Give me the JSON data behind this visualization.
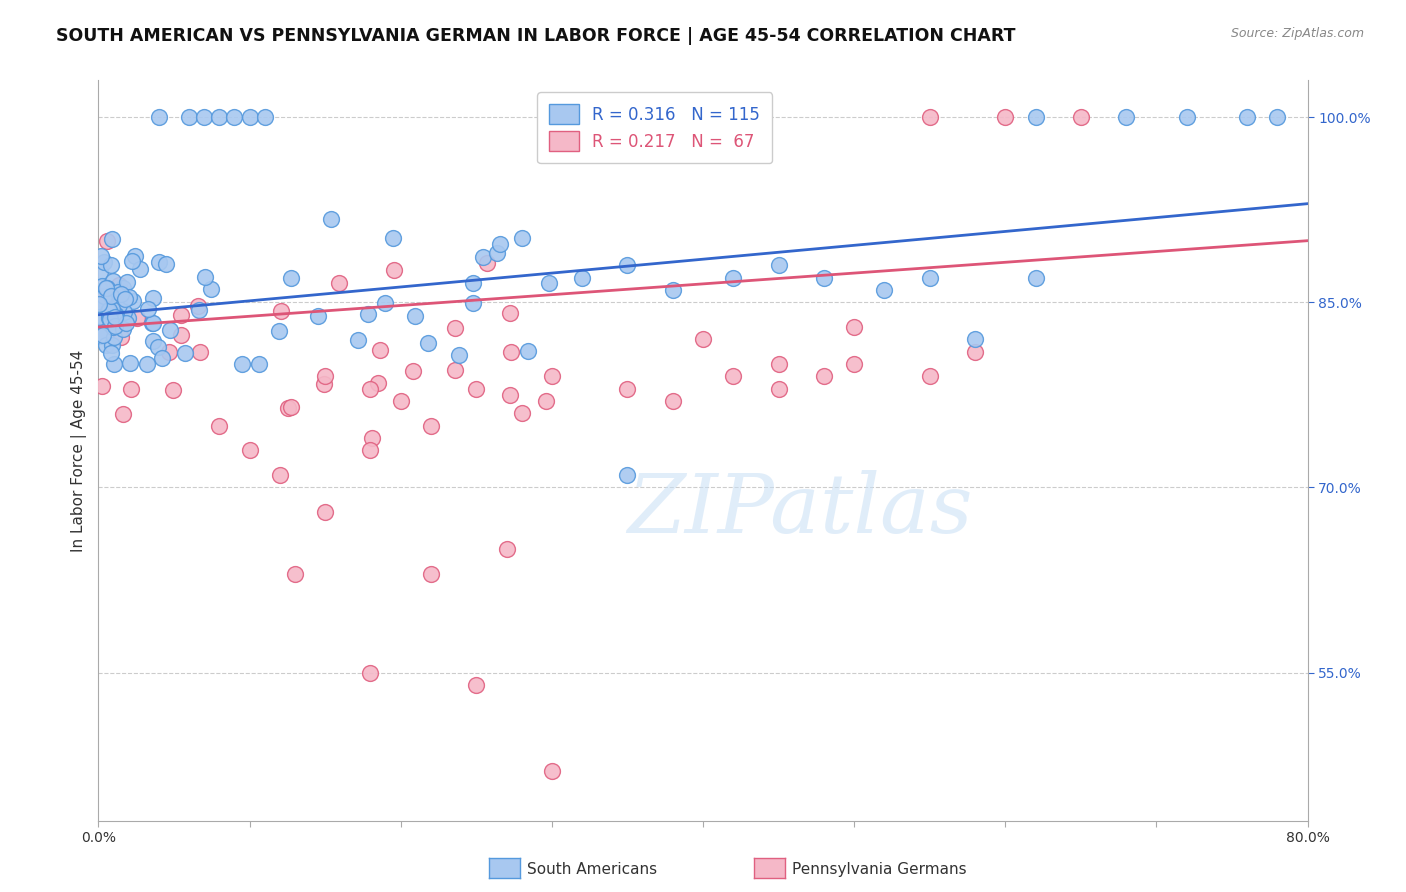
{
  "title": "SOUTH AMERICAN VS PENNSYLVANIA GERMAN IN LABOR FORCE | AGE 45-54 CORRELATION CHART",
  "source": "Source: ZipAtlas.com",
  "ylabel": "In Labor Force | Age 45-54",
  "xmin": 0.0,
  "xmax": 80.0,
  "ymin": 43.0,
  "ymax": 103.0,
  "blue_R": 0.316,
  "blue_N": 115,
  "pink_R": 0.217,
  "pink_N": 67,
  "blue_color": "#A8C8F0",
  "pink_color": "#F5B8C8",
  "blue_edge_color": "#5599DD",
  "pink_edge_color": "#E06080",
  "blue_line_color": "#3366CC",
  "pink_line_color": "#DD5577",
  "legend_label_blue": "South Americans",
  "legend_label_pink": "Pennsylvania Germans",
  "watermark": "ZIPatlas",
  "title_fontsize": 12.5,
  "axis_label_fontsize": 11,
  "tick_fontsize": 10,
  "legend_fontsize": 12,
  "ytick_vals": [
    55.0,
    70.0,
    85.0,
    100.0
  ],
  "ytick_labels": [
    "55.0%",
    "70.0%",
    "85.0%",
    "100.0%"
  ]
}
